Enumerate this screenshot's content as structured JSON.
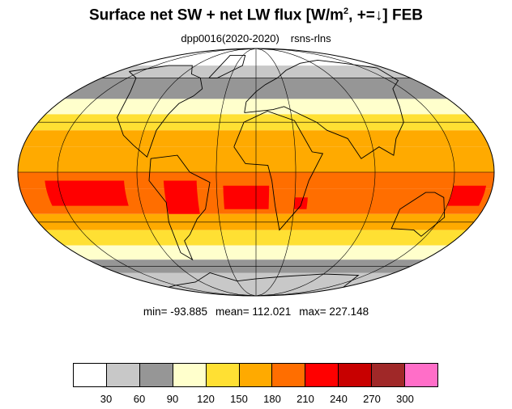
{
  "title": {
    "main": "Surface net SW + net LW flux [W/m",
    "sup": "2",
    "tail": ", +=↓]  FEB"
  },
  "subtitle": {
    "experiment": "dpp0016(2020-2020)",
    "variable": "rsns-rlns"
  },
  "stats": {
    "min": "min= -93.885",
    "mean": "mean= 112.021",
    "max": "max= 227.148"
  },
  "colorbar": {
    "colors": [
      "#ffffff",
      "#c8c8c8",
      "#969696",
      "#ffffcc",
      "#ffe033",
      "#ffaa00",
      "#ff6e00",
      "#ff0000",
      "#c80000",
      "#a02828",
      "#ff6ec8"
    ],
    "ticks": [
      "30",
      "60",
      "90",
      "120",
      "150",
      "180",
      "210",
      "240",
      "270",
      "300"
    ]
  },
  "map": {
    "projection": "mollweide",
    "latitude_bands": [
      {
        "lat": [
          70,
          90
        ],
        "level": 0
      },
      {
        "lat": [
          60,
          70
        ],
        "level": 1
      },
      {
        "lat": [
          45,
          60
        ],
        "level": 2
      },
      {
        "lat": [
          35,
          45
        ],
        "level": 3
      },
      {
        "lat": [
          25,
          35
        ],
        "level": 4
      },
      {
        "lat": [
          15,
          25
        ],
        "level": 5
      },
      {
        "lat": [
          0,
          15
        ],
        "level": 5
      },
      {
        "lat": [
          -10,
          0
        ],
        "level": 6
      },
      {
        "lat": [
          -25,
          -10
        ],
        "level": 6
      },
      {
        "lat": [
          -35,
          -25
        ],
        "level": 5
      },
      {
        "lat": [
          -45,
          -35
        ],
        "level": 4
      },
      {
        "lat": [
          -55,
          -45
        ],
        "level": 3
      },
      {
        "lat": [
          -65,
          -55
        ],
        "level": 2
      },
      {
        "lat": [
          -90,
          -65
        ],
        "level": 1
      }
    ],
    "hot_spots": [
      {
        "name": "south-atlantic",
        "lon": [
          -25,
          10
        ],
        "lat": [
          -22,
          -8
        ],
        "level": 7
      },
      {
        "name": "south-america",
        "lon": [
          -70,
          -45
        ],
        "lat": [
          -25,
          -5
        ],
        "level": 7
      },
      {
        "name": "east-pacific",
        "lon": [
          -160,
          -100
        ],
        "lat": [
          -20,
          -5
        ],
        "level": 7
      },
      {
        "name": "mozambique",
        "lon": [
          30,
          40
        ],
        "lat": [
          -22,
          -15
        ],
        "level": 7
      },
      {
        "name": "west-pacific",
        "lon": [
          150,
          175
        ],
        "lat": [
          -20,
          -8
        ],
        "level": 7
      }
    ],
    "meridians": [
      -150,
      -90,
      -30,
      0,
      30,
      90,
      150
    ],
    "parallels": [
      -60,
      -30,
      0,
      30,
      60
    ]
  }
}
